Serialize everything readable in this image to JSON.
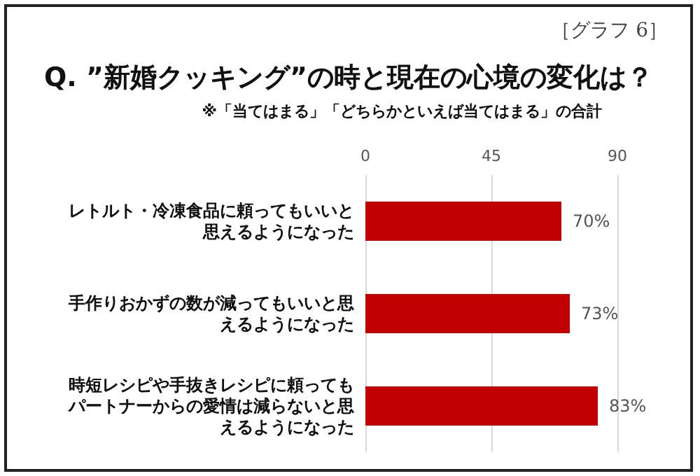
{
  "chart_data": {
    "type": "bar",
    "orientation": "horizontal",
    "title": "Q. ”新婚クッキング”の時と現在の心境の変化は？",
    "subtitle": "※「当てはまる」「どちらかといえば当てはまる」の合計",
    "annotations": [
      "［グラフ 6］"
    ],
    "categories": [
      "レトルト・冷凍食品に頼ってもいいと思えるようになった",
      "手作りおかずの数が減ってもいいと思えるようになった",
      "時短レシピや手抜きレシピに頼ってもパートナーからの愛情は減らないと思えるようになった"
    ],
    "values": [
      70,
      73,
      83
    ],
    "value_labels": [
      "70%",
      "73%",
      "83%"
    ],
    "color": "#c00000",
    "xlim": [
      0,
      90
    ],
    "xticks": [
      0,
      45,
      90
    ],
    "grid": "x"
  }
}
